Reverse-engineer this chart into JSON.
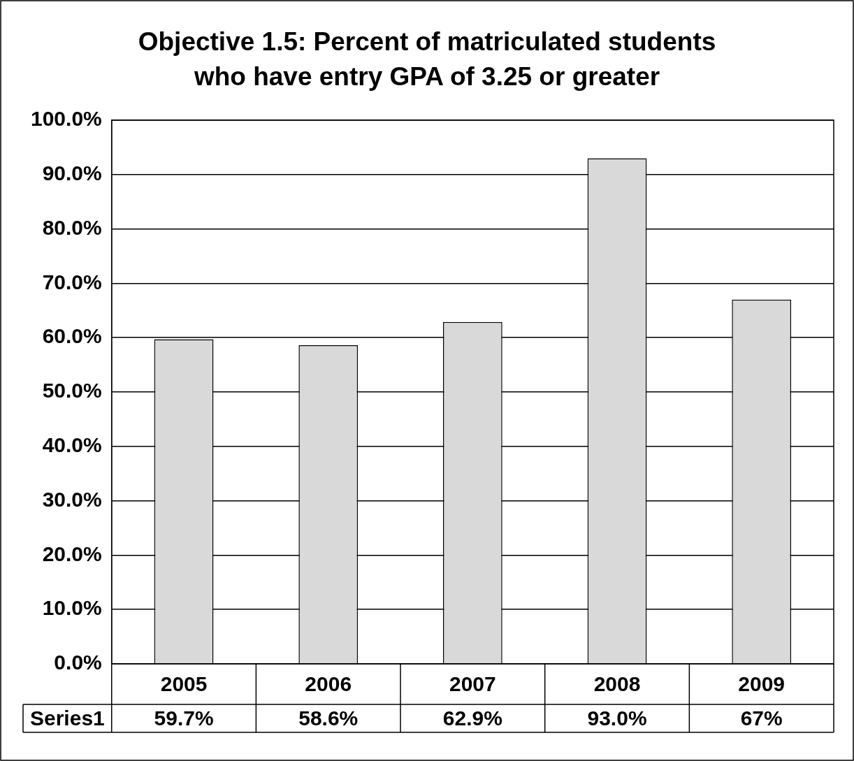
{
  "chart_data": {
    "type": "bar",
    "title": "Objective 1.5: Percent of matriculated students who have entry GPA of 3.25 or greater",
    "categories": [
      "2005",
      "2006",
      "2007",
      "2008",
      "2009"
    ],
    "series": [
      {
        "name": "Series1",
        "color": "#d9d9d9",
        "values": [
          59.7,
          58.6,
          62.9,
          93.0,
          67
        ],
        "value_labels": [
          "59.7%",
          "58.6%",
          "62.9%",
          "93.0%",
          "67%"
        ]
      }
    ],
    "ylim": [
      0,
      100
    ],
    "yticks": [
      {
        "value": 0,
        "label": "0.0%"
      },
      {
        "value": 10,
        "label": "10.0%"
      },
      {
        "value": 20,
        "label": "20.0%"
      },
      {
        "value": 30,
        "label": "30.0%"
      },
      {
        "value": 40,
        "label": "40.0%"
      },
      {
        "value": 50,
        "label": "50.0%"
      },
      {
        "value": 60,
        "label": "60.0%"
      },
      {
        "value": 70,
        "label": "70.0%"
      },
      {
        "value": 80,
        "label": "80.0%"
      },
      {
        "value": 90,
        "label": "90.0%"
      },
      {
        "value": 100,
        "label": "100.0%"
      }
    ],
    "grid": "y",
    "legend": false
  }
}
